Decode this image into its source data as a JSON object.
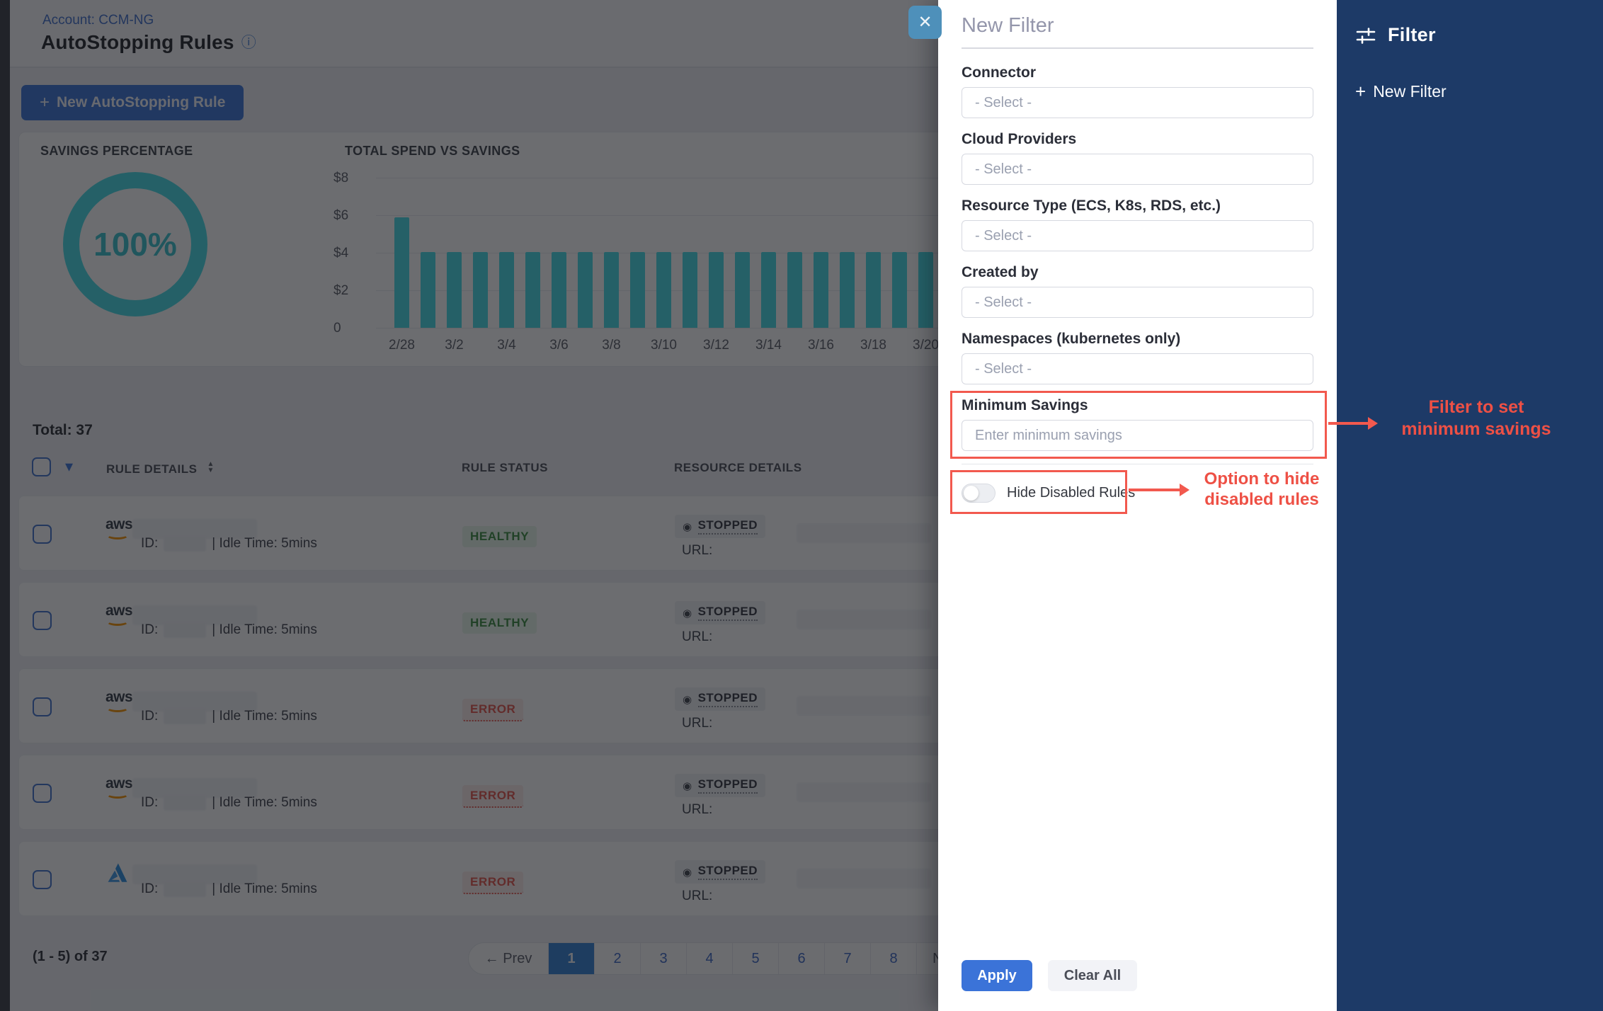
{
  "page": {
    "account_label": "Account: CCM-NG",
    "title": "AutoStopping Rules",
    "info_icon": "ⓘ"
  },
  "toolbar": {
    "new_rule_label": "New AutoStopping Rule",
    "plus": "+"
  },
  "summary": {
    "savings_title": "SAVINGS PERCENTAGE",
    "savings_value": "100%",
    "spend_title": "TOTAL SPEND VS SAVINGS"
  },
  "chart_data": {
    "type": "bar",
    "title": "TOTAL SPEND VS SAVINGS",
    "x": [
      "2/28",
      "3/1",
      "3/2",
      "3/3",
      "3/4",
      "3/5",
      "3/6",
      "3/7",
      "3/8",
      "3/9",
      "3/10",
      "3/11",
      "3/12",
      "3/13",
      "3/14",
      "3/15",
      "3/16",
      "3/17",
      "3/18",
      "3/19",
      "3/20"
    ],
    "values": [
      5.9,
      4.05,
      4.05,
      4.05,
      4.05,
      4.05,
      4.05,
      4.05,
      4.05,
      4.05,
      4.05,
      4.05,
      4.05,
      4.05,
      4.05,
      4.05,
      4.05,
      4.05,
      4.05,
      4.05,
      4.05
    ],
    "tick_labels": [
      "2/28",
      "3/2",
      "3/4",
      "3/6",
      "3/8",
      "3/10",
      "3/12",
      "3/14",
      "3/16",
      "3/18",
      "3/20"
    ],
    "yticks": [
      "$8",
      "$6",
      "$4",
      "$2",
      "0"
    ],
    "ylim": [
      0,
      8
    ],
    "bar_color": "#45dce6",
    "grid": true,
    "legend": "none"
  },
  "table": {
    "total_label": "Total: 37",
    "columns": [
      "RULE DETAILS",
      "RULE STATUS",
      "RESOURCE DETAILS"
    ],
    "sort_glyph_up": "▲",
    "sort_glyph_down": "▼",
    "header_chevron": "▾",
    "rows": [
      {
        "provider": "aws",
        "id_prefix": "ID:",
        "idle_text": "| Idle Time: 5mins",
        "status": "HEALTHY",
        "resource_status": "STOPPED",
        "url_label": "URL:"
      },
      {
        "provider": "aws",
        "id_prefix": "ID:",
        "idle_text": "| Idle Time: 5mins",
        "status": "HEALTHY",
        "resource_status": "STOPPED",
        "url_label": "URL:"
      },
      {
        "provider": "aws",
        "id_prefix": "ID:",
        "idle_text": "| Idle Time: 5mins",
        "status": "ERROR",
        "resource_status": "STOPPED",
        "url_label": "URL:"
      },
      {
        "provider": "aws",
        "id_prefix": "ID:",
        "idle_text": "| Idle Time: 5mins",
        "status": "ERROR",
        "resource_status": "STOPPED",
        "url_label": "URL:"
      },
      {
        "provider": "azure",
        "id_prefix": "ID:",
        "idle_text": "| Idle Time: 5mins",
        "status": "ERROR",
        "resource_status": "STOPPED",
        "url_label": "URL:"
      }
    ],
    "stopped_icon": "◉"
  },
  "pagination": {
    "range_label": "(1 - 5) of 37",
    "prev_label": "← Prev",
    "pages": [
      "1",
      "2",
      "3",
      "4",
      "5",
      "6",
      "7",
      "8"
    ],
    "active_page": "1",
    "next_label": "Next →"
  },
  "filter_drawer": {
    "title": "New Filter",
    "close_glyph": "✕",
    "fields": [
      {
        "label": "Connector",
        "type": "select",
        "value": "- Select -"
      },
      {
        "label": "Cloud Providers",
        "type": "select",
        "value": "- Select -"
      },
      {
        "label": "Resource Type (ECS, K8s, RDS, etc.)",
        "type": "select",
        "value": "- Select -"
      },
      {
        "label": "Created by",
        "type": "select",
        "value": "- Select -"
      },
      {
        "label": "Namespaces (kubernetes only)",
        "type": "select",
        "value": "- Select -"
      },
      {
        "label": "Minimum Savings",
        "type": "input",
        "placeholder": "Enter minimum savings"
      }
    ],
    "toggle_label": "Hide Disabled Rules",
    "toggle_state": "off",
    "apply_label": "Apply",
    "clear_label": "Clear All"
  },
  "filter_sidebar": {
    "title": "Filter",
    "new_filter_label": "New Filter",
    "plus": "+"
  },
  "annotations": {
    "min_savings_line1": "Filter to set",
    "min_savings_line2": "minimum savings",
    "hide_disabled_line1": "Option to hide",
    "hide_disabled_line2": "disabled rules",
    "accent_color": "#f2594e"
  },
  "colors": {
    "primary_blue": "#3b73d8",
    "chart_teal": "#45dce6",
    "navy_panel": "#1d3a67",
    "healthy_green": "#3a8c40",
    "error_red": "#e5544b",
    "close_button": "#4e90ba"
  }
}
